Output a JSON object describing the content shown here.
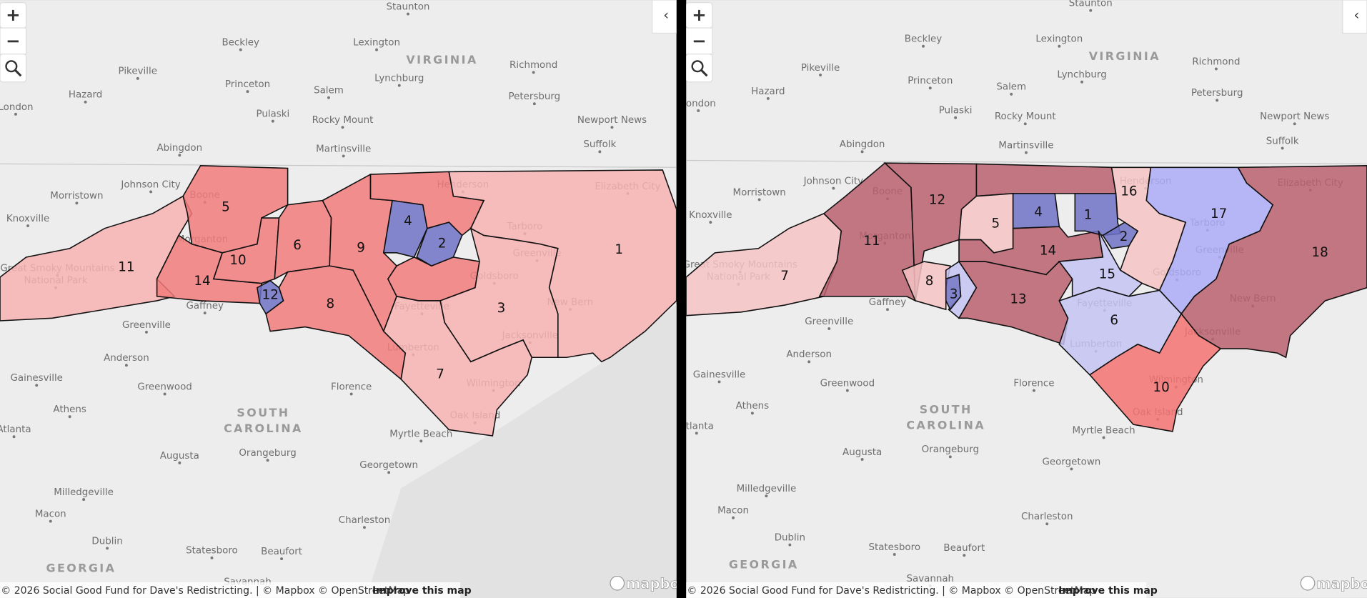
{
  "controls": {
    "zoom_in": "+",
    "zoom_out": "−",
    "collapse": "‹"
  },
  "region_labels": [
    [
      "VIRGINIA"
    ],
    [
      "SOUTH",
      "CAROLINA"
    ],
    [
      "GEORGIA"
    ]
  ],
  "places": [
    "Staunton",
    "Beckley",
    "Lexington",
    "Richmond",
    "Pikeville",
    "Princeton",
    "Lynchburg",
    "Hazard",
    "Salem",
    "Petersburg",
    "London",
    "Pulaski",
    "Rocky Mount",
    "Newport News",
    "Abingdon",
    "Suffolk",
    "Martinsville",
    "Johnson City",
    "Morristown",
    "Knoxville",
    "Elizabeth City",
    "Henderson",
    "Tarboro",
    "Greenville",
    "Boone",
    "Great Smoky Mountains",
    "National Park",
    "Morganton",
    "Goldsboro",
    "New Bern",
    "Fayetteville",
    "Jacksonville",
    "Lumberton",
    "Gaffney",
    "Greenville",
    "Anderson",
    "Gainesville",
    "Greenwood",
    "Florence",
    "Athens",
    "Atlanta",
    "Wilmington",
    "Oak Island",
    "Myrtle Beach",
    "Augusta",
    "Orangeburg",
    "Georgetown",
    "Milledgeville",
    "Macon",
    "Charleston",
    "Dublin",
    "Statesboro",
    "Beaufort",
    "Savannah"
  ],
  "maps": [
    {
      "districts": [
        11,
        5,
        14,
        10,
        6,
        9,
        12,
        8,
        4,
        2,
        3,
        1,
        7
      ]
    },
    {
      "districts": [
        12,
        16,
        17,
        4,
        1,
        2,
        5,
        11,
        18,
        14,
        7,
        8,
        15,
        3,
        13,
        6,
        10
      ]
    }
  ],
  "attribution": "© 2026 Social Good Fund for Dave's Redistricting. | © Mapbox © OpenStreetMap",
  "improve_link": "Improve this map",
  "logo": "mapbox"
}
